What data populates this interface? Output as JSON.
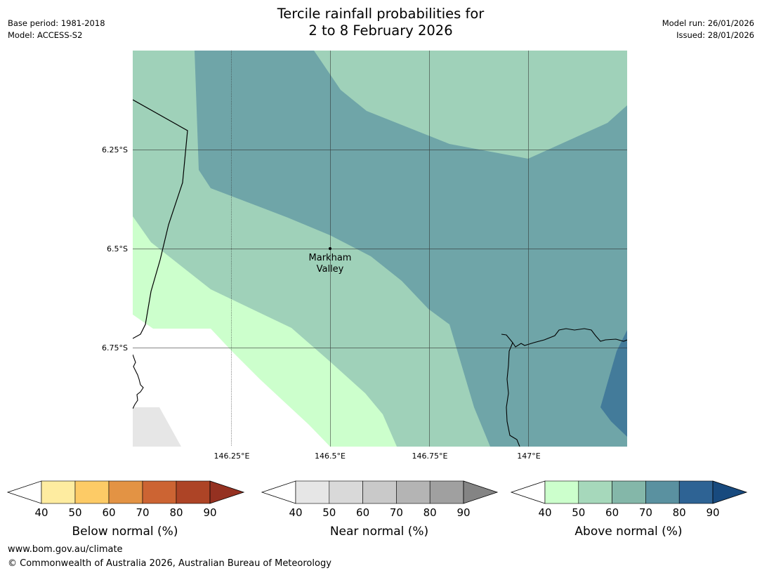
{
  "header": {
    "base_period": "Base period: 1981-2018",
    "model": "Model: ACCESS-S2",
    "title_line1": "Tercile rainfall probabilities for",
    "title_line2": "2 to 8 February 2026",
    "model_run": "Model run: 26/01/2026",
    "issued": "Issued: 28/01/2026"
  },
  "map": {
    "place_label_line1": "Markham",
    "place_label_line2": "Valley",
    "lat_labels": [
      "6.25°S",
      "6.5°S",
      "6.75°S"
    ],
    "lon_labels": [
      "146.25°E",
      "146.5°E",
      "146.75°E",
      "147°E"
    ]
  },
  "legend": {
    "below": {
      "title": "Below normal (%)",
      "ticks": [
        "40",
        "50",
        "60",
        "70",
        "80",
        "90"
      ],
      "colors": [
        "#ffffff",
        "#feeca0",
        "#fdcb66",
        "#e39344",
        "#cc6433",
        "#ad4426",
        "#953121"
      ]
    },
    "near": {
      "title": "Near normal (%)",
      "ticks": [
        "40",
        "50",
        "60",
        "70",
        "80",
        "90"
      ],
      "colors": [
        "#ffffff",
        "#e6e6e6",
        "#d9d9d9",
        "#c9c9c9",
        "#b4b4b4",
        "#a0a0a0",
        "#848484"
      ]
    },
    "above": {
      "title": "Above normal (%)",
      "ticks": [
        "40",
        "50",
        "60",
        "70",
        "80",
        "90"
      ],
      "colors": [
        "#ffffff",
        "#ccffcc",
        "#a6d8bb",
        "#84b7a9",
        "#5a91a0",
        "#2e6394",
        "#184a7e"
      ]
    }
  },
  "footer": {
    "url": "www.bom.gov.au/climate",
    "copyright": "© Commonwealth of Australia 2026, Australian Bureau of Meteorology"
  }
}
